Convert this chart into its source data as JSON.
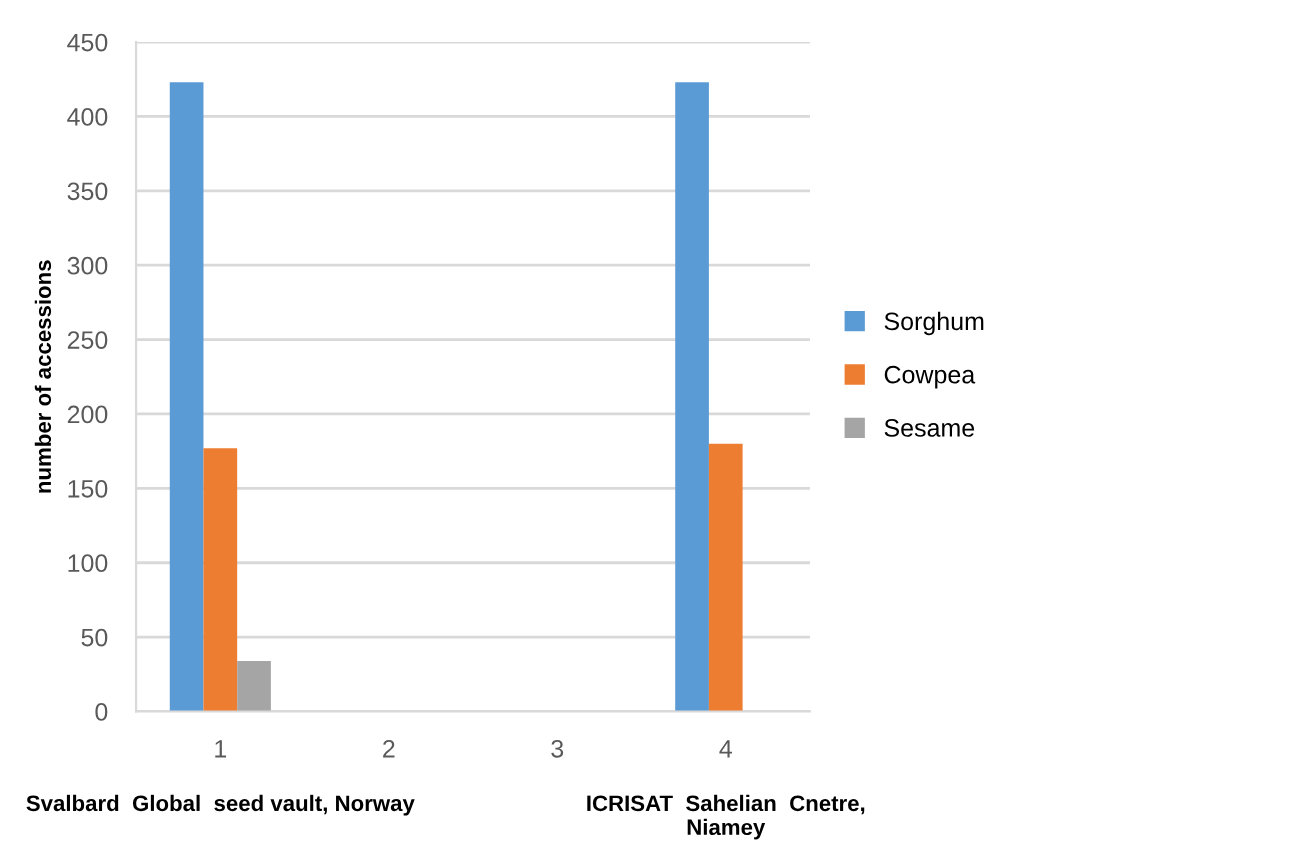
{
  "chart_data": {
    "type": "bar",
    "ylabel": "number of accessions",
    "categories": [
      "1",
      "2",
      "3",
      "4"
    ],
    "series": [
      {
        "name": "Sorghum",
        "color": "#5b9bd5",
        "values": [
          423,
          0,
          0,
          423
        ]
      },
      {
        "name": "Cowpea",
        "color": "#ed7d31",
        "values": [
          177,
          0,
          0,
          180
        ]
      },
      {
        "name": "Sesame",
        "color": "#a5a5a5",
        "values": [
          34,
          0,
          0,
          0
        ]
      }
    ],
    "ylim": [
      0,
      450
    ],
    "yticks": [
      0,
      50,
      100,
      150,
      200,
      250,
      300,
      350,
      400,
      450
    ],
    "grid": "y",
    "legend": "right",
    "annotations": [
      "Svalbard  Global  seed vault, Norway",
      "ICRISAT  Sahelian  Cnetre,\nNiamey"
    ]
  }
}
